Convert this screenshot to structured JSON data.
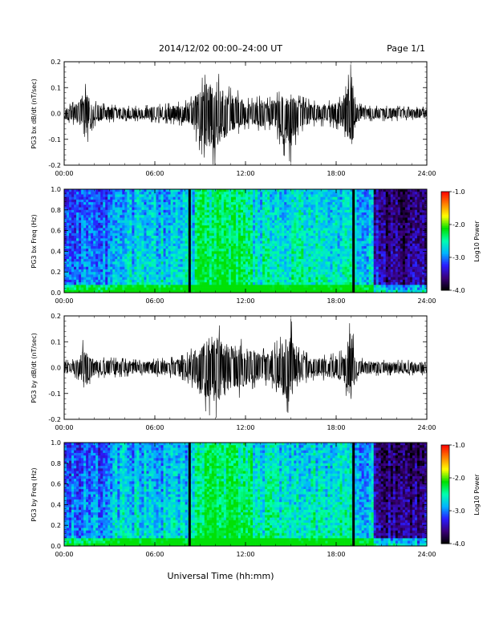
{
  "header": {
    "title": "2014/12/02   00:00–24:00 UT",
    "page": "Page 1/1"
  },
  "footer": {
    "xlabel": "Universal Time (hh:mm)"
  },
  "chart_data": [
    {
      "type": "line",
      "ylabel": "PG3 bx dB/dt (nT/sec)",
      "x_ticks": [
        "00:00",
        "06:00",
        "12:00",
        "18:00",
        "24:00"
      ],
      "y_ticks": [
        "0.2",
        "0.1",
        "0.0",
        "-0.1",
        "-0.2"
      ],
      "xlim": [
        0,
        24
      ],
      "ylim": [
        -0.2,
        0.2
      ],
      "x_unit": "hours UT",
      "envelope": {
        "x": [
          0,
          0.5,
          1,
          1.3,
          1.5,
          1.8,
          2,
          2.5,
          3,
          4,
          5,
          6,
          7,
          8,
          8.5,
          9,
          9.5,
          10,
          10.3,
          10.6,
          11,
          11.5,
          12,
          12.5,
          13,
          13.5,
          14,
          14.5,
          15,
          15.5,
          16,
          16.5,
          17,
          17.5,
          18,
          18.5,
          19,
          19.3,
          19.5,
          20,
          21,
          22,
          23,
          24
        ],
        "max": [
          0.03,
          0.04,
          0.06,
          0.13,
          0.1,
          0.06,
          0.05,
          0.04,
          0.035,
          0.03,
          0.03,
          0.035,
          0.04,
          0.05,
          0.07,
          0.13,
          0.16,
          0.2,
          0.14,
          0.12,
          0.1,
          0.09,
          0.06,
          0.06,
          0.07,
          0.06,
          0.08,
          0.09,
          0.1,
          0.07,
          0.06,
          0.05,
          0.05,
          0.05,
          0.06,
          0.07,
          0.2,
          0.07,
          0.04,
          0.03,
          0.03,
          0.03,
          0.025,
          0.025
        ],
        "min": [
          -0.03,
          -0.04,
          -0.06,
          -0.08,
          -0.12,
          -0.07,
          -0.05,
          -0.04,
          -0.035,
          -0.03,
          -0.03,
          -0.035,
          -0.04,
          -0.05,
          -0.07,
          -0.15,
          -0.19,
          -0.2,
          -0.15,
          -0.13,
          -0.1,
          -0.08,
          -0.06,
          -0.06,
          -0.07,
          -0.06,
          -0.08,
          -0.16,
          -0.19,
          -0.08,
          -0.06,
          -0.05,
          -0.05,
          -0.05,
          -0.06,
          -0.07,
          -0.2,
          -0.06,
          -0.04,
          -0.03,
          -0.03,
          -0.03,
          -0.025,
          -0.025
        ]
      }
    },
    {
      "type": "heatmap",
      "ylabel": "PG3 bx Freq (Hz)",
      "x_ticks": [
        "00:00",
        "06:00",
        "12:00",
        "18:00",
        "24:00"
      ],
      "y_ticks": [
        "1.0",
        "0.8",
        "0.6",
        "0.4",
        "0.2",
        "0.0"
      ],
      "xlim": [
        0,
        24
      ],
      "ylim": [
        0,
        1
      ],
      "colorbar": {
        "label": "Log10 Power",
        "ticks": [
          "-1.0",
          "-2.0",
          "-3.0",
          "-4.0"
        ],
        "range": [
          -4,
          -1
        ],
        "colormap": [
          "#000000",
          "#3a007a",
          "#2a1cff",
          "#00b4ff",
          "#00ffb0",
          "#00e000",
          "#ffff00",
          "#ff8000",
          "#ff0000"
        ]
      },
      "gaps_hours": [
        8.3,
        19.15
      ],
      "dark_interval_hours": [
        21.0,
        24.0
      ]
    },
    {
      "type": "line",
      "ylabel": "PG3 by dB/dt (nT/sec)",
      "x_ticks": [
        "00:00",
        "06:00",
        "12:00",
        "18:00",
        "24:00"
      ],
      "y_ticks": [
        "0.2",
        "0.1",
        "0.0",
        "-0.1",
        "-0.2"
      ],
      "xlim": [
        0,
        24
      ],
      "ylim": [
        -0.2,
        0.2
      ],
      "x_unit": "hours UT",
      "envelope": {
        "x": [
          0,
          0.5,
          1,
          1.2,
          1.5,
          1.8,
          2,
          2.5,
          3,
          4,
          5,
          6,
          7,
          8,
          8.5,
          9,
          9.5,
          10,
          10.5,
          11,
          11.5,
          12,
          12.5,
          13,
          13.5,
          14,
          14.5,
          15,
          15.5,
          16,
          16.5,
          17,
          17.5,
          18,
          18.5,
          19,
          19.3,
          19.5,
          20,
          21,
          22,
          23,
          24
        ],
        "max": [
          0.03,
          0.03,
          0.05,
          0.11,
          0.08,
          0.05,
          0.04,
          0.04,
          0.04,
          0.035,
          0.03,
          0.035,
          0.04,
          0.05,
          0.08,
          0.12,
          0.16,
          0.19,
          0.14,
          0.13,
          0.12,
          0.1,
          0.09,
          0.07,
          0.08,
          0.1,
          0.13,
          0.19,
          0.08,
          0.06,
          0.05,
          0.05,
          0.05,
          0.06,
          0.07,
          0.2,
          0.06,
          0.04,
          0.035,
          0.03,
          0.03,
          0.03,
          0.03
        ],
        "min": [
          -0.03,
          -0.03,
          -0.05,
          -0.07,
          -0.09,
          -0.05,
          -0.04,
          -0.04,
          -0.04,
          -0.035,
          -0.03,
          -0.035,
          -0.04,
          -0.05,
          -0.08,
          -0.14,
          -0.18,
          -0.2,
          -0.15,
          -0.13,
          -0.12,
          -0.1,
          -0.08,
          -0.07,
          -0.07,
          -0.09,
          -0.15,
          -0.19,
          -0.08,
          -0.06,
          -0.05,
          -0.05,
          -0.05,
          -0.06,
          -0.07,
          -0.2,
          -0.06,
          -0.04,
          -0.035,
          -0.03,
          -0.03,
          -0.03,
          -0.03
        ]
      }
    },
    {
      "type": "heatmap",
      "ylabel": "PG3 by Freq (Hz)",
      "x_ticks": [
        "00:00",
        "06:00",
        "12:00",
        "18:00",
        "24:00"
      ],
      "y_ticks": [
        "1.0",
        "0.8",
        "0.6",
        "0.4",
        "0.2",
        "0.0"
      ],
      "xlim": [
        0,
        24
      ],
      "ylim": [
        0,
        1
      ],
      "colorbar": {
        "label": "Log10 Power",
        "ticks": [
          "-1.0",
          "-2.0",
          "-3.0",
          "-4.0"
        ],
        "range": [
          -4,
          -1
        ],
        "colormap": [
          "#000000",
          "#3a007a",
          "#2a1cff",
          "#00b4ff",
          "#00ffb0",
          "#00e000",
          "#ffff00",
          "#ff8000",
          "#ff0000"
        ]
      },
      "gaps_hours": [
        8.3,
        19.15
      ],
      "dark_interval_hours": [
        21.0,
        24.0
      ]
    }
  ]
}
